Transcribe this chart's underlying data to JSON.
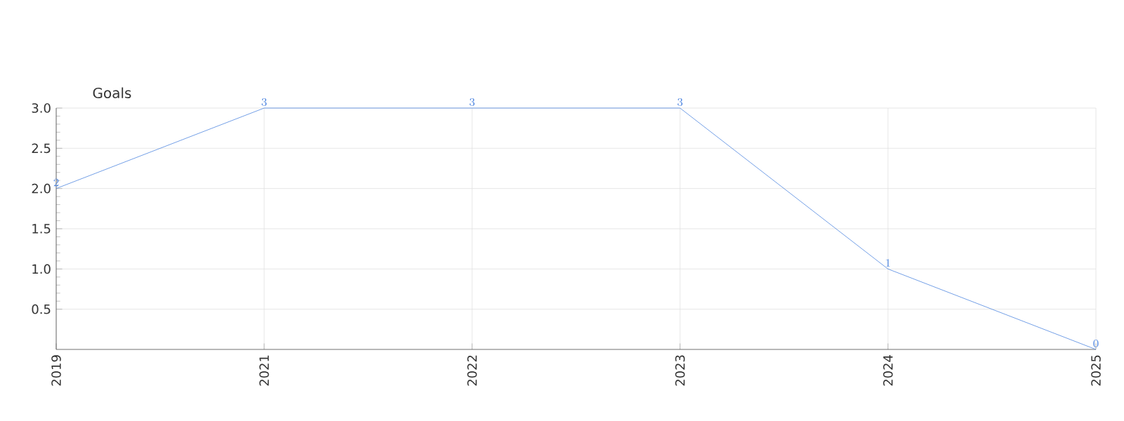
{
  "chart_data": {
    "type": "line",
    "ylabel": "Goals",
    "categories": [
      "2019",
      "2021",
      "2022",
      "2023",
      "2024",
      "2025"
    ],
    "values": [
      2,
      3,
      3,
      3,
      1,
      0
    ],
    "color": "#4f86e0",
    "ylim": [
      0,
      3
    ],
    "yticks": [
      {
        "value": 0.5,
        "label": "0.5"
      },
      {
        "value": 1,
        "label": "1.0"
      },
      {
        "value": 1.5,
        "label": "1.5"
      },
      {
        "value": 2,
        "label": "2.0"
      },
      {
        "value": 2.5,
        "label": "2.5"
      },
      {
        "value": 3,
        "label": "3.0"
      }
    ],
    "grid": true,
    "data_labels": true,
    "marker": "none",
    "line_style": "solid"
  }
}
